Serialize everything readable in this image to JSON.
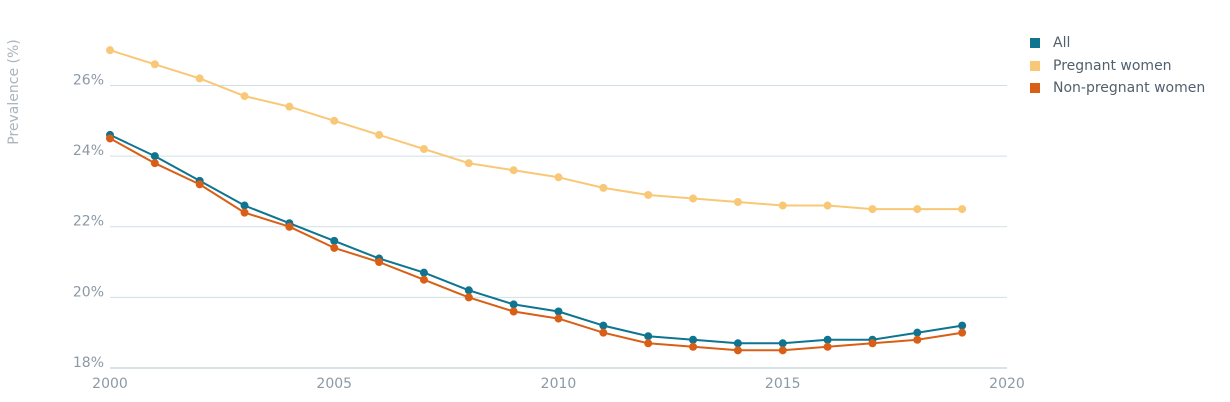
{
  "chart_data": {
    "type": "line",
    "ylabel": "Prevalence (%)",
    "ylim": [
      18,
      27.5
    ],
    "xlim": [
      2000,
      2020
    ],
    "y_ticks": [
      18,
      20,
      22,
      24,
      26
    ],
    "y_tick_labels": [
      "18%",
      "20%",
      "22%",
      "24%",
      "26%"
    ],
    "x_ticks": [
      2000,
      2005,
      2010,
      2015,
      2020
    ],
    "x_tick_labels": [
      "2000",
      "2005",
      "2010",
      "2015",
      "2020"
    ],
    "grid": true,
    "legend_position": "top-right",
    "x": [
      2000,
      2001,
      2002,
      2003,
      2004,
      2005,
      2006,
      2007,
      2008,
      2009,
      2010,
      2011,
      2012,
      2013,
      2014,
      2015,
      2016,
      2017,
      2018,
      2019
    ],
    "series": [
      {
        "name": "All",
        "color": "#0e7490",
        "values": [
          24.6,
          24.0,
          23.3,
          22.6,
          22.1,
          21.6,
          21.1,
          20.7,
          20.2,
          19.8,
          19.6,
          19.2,
          18.9,
          18.8,
          18.7,
          18.7,
          18.8,
          18.8,
          19.0,
          19.2
        ]
      },
      {
        "name": "Pregnant women",
        "color": "#f9c877",
        "values": [
          27.0,
          26.6,
          26.2,
          25.7,
          25.4,
          25.0,
          24.6,
          24.2,
          23.8,
          23.6,
          23.4,
          23.1,
          22.9,
          22.8,
          22.7,
          22.6,
          22.6,
          22.5,
          22.5,
          22.5
        ]
      },
      {
        "name": "Non-pregnant women",
        "color": "#d95f16",
        "values": [
          24.5,
          23.8,
          23.2,
          22.4,
          22.0,
          21.4,
          21.0,
          20.5,
          20.0,
          19.6,
          19.4,
          19.0,
          18.7,
          18.6,
          18.5,
          18.5,
          18.6,
          18.7,
          18.8,
          19.0
        ]
      }
    ]
  }
}
